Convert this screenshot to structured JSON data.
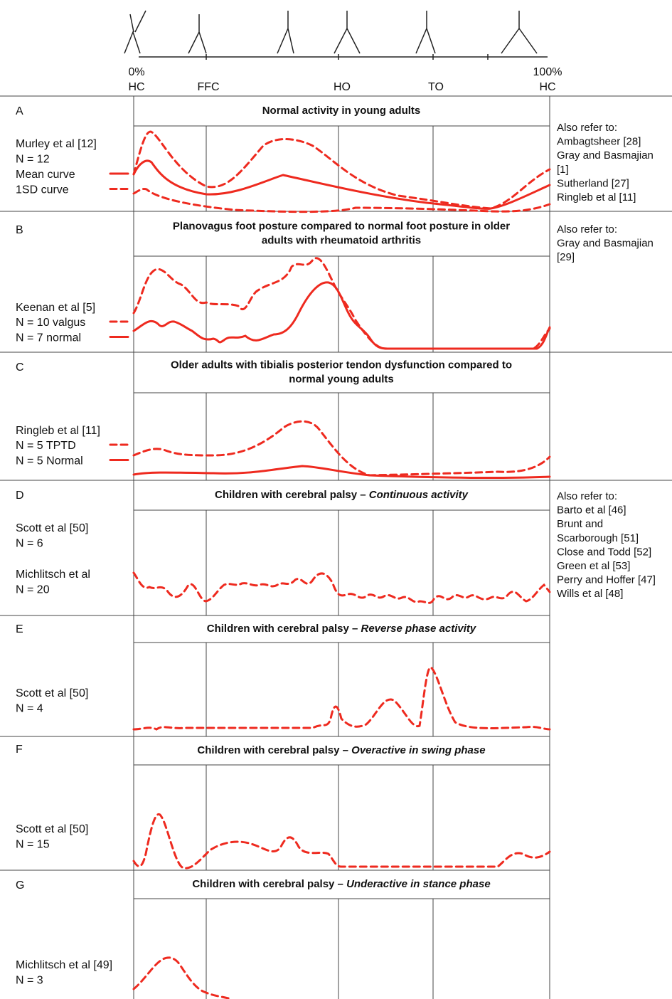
{
  "gait_axis": {
    "start": "0%",
    "end": "100%",
    "events": [
      "HC",
      "FFC",
      "HO",
      "TO",
      "HC"
    ]
  },
  "panels": [
    {
      "letter": "A",
      "title": [
        "Normal activity in young adults"
      ],
      "source_groups": [
        [
          "Murley et al [12]",
          "N = 12"
        ]
      ],
      "legend": [
        {
          "label": "Mean curve",
          "style": "solid"
        },
        {
          "label": "1SD curve",
          "style": "dashed"
        }
      ],
      "see_also": [
        "Also refer to:",
        "Ambagtsheer [28]",
        "Gray and Basmajian",
        "[1]",
        "Sutherland [27]",
        "Ringleb et al [11]"
      ]
    },
    {
      "letter": "B",
      "title": [
        "Planovagus foot posture compared to normal foot posture in older",
        "adults with rheumatoid arthritis"
      ],
      "source_groups": [
        [
          "Keenan et al [5]"
        ]
      ],
      "legend": [
        {
          "label": "N = 10 valgus",
          "style": "dashed"
        },
        {
          "label": "N = 7 normal",
          "style": "solid"
        }
      ],
      "see_also": [
        "Also refer to:",
        "Gray and Basmajian",
        "[29]"
      ]
    },
    {
      "letter": "C",
      "title": [
        "Older adults with tibialis posterior tendon dysfunction compared to",
        "normal young adults"
      ],
      "source_groups": [
        [
          "Ringleb et al [11]"
        ]
      ],
      "legend": [
        {
          "label": "N = 5 TPTD",
          "style": "dashed"
        },
        {
          "label": "N = 5 Normal",
          "style": "solid"
        }
      ],
      "see_also": []
    },
    {
      "letter": "D",
      "title": [
        "Children with cerebral palsy – "
      ],
      "title_italic": "Continuous activity",
      "source_groups": [
        [
          "Scott et al [50]",
          "N = 6"
        ],
        [
          "Michlitsch et al",
          "N = 20"
        ]
      ],
      "legend": [],
      "see_also": [
        "Also refer to:",
        "Barto et al [46]",
        "Brunt and",
        "Scarborough [51]",
        "Close and Todd [52]",
        "Green et al [53]",
        "Perry and Hoffer [47]",
        "Wills et al [48]"
      ]
    },
    {
      "letter": "E",
      "title": [
        "Children with cerebral palsy – "
      ],
      "title_italic": "Reverse phase activity",
      "source_groups": [
        [
          "Scott et al [50]",
          "N = 4"
        ]
      ],
      "legend": [],
      "see_also": []
    },
    {
      "letter": "F",
      "title": [
        "Children with cerebral palsy – "
      ],
      "title_italic": "Overactive in swing phase",
      "source_groups": [
        [
          "Scott et al [50]",
          "N = 15"
        ]
      ],
      "legend": [],
      "see_also": []
    },
    {
      "letter": "G",
      "title": [
        "Children with cerebral palsy – "
      ],
      "title_italic": "Underactive in stance phase",
      "source_groups": [
        [
          "Michlitsch et al [49]",
          "N = 3"
        ]
      ],
      "legend": [],
      "see_also": []
    }
  ]
}
